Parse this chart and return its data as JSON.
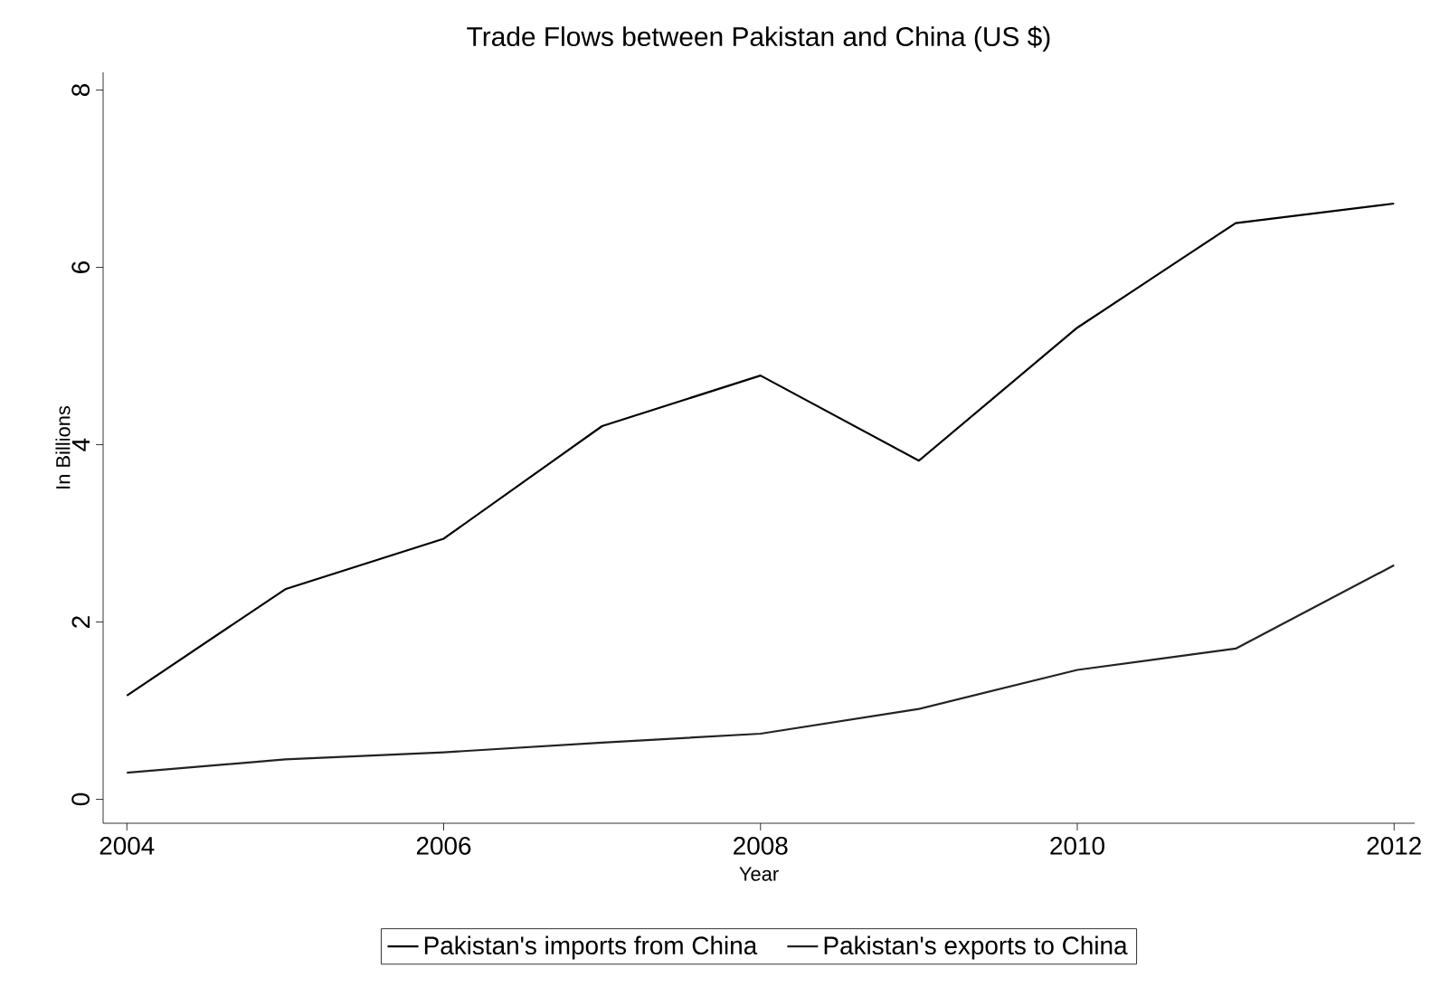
{
  "chart_data": {
    "type": "line",
    "title": "Trade Flows between Pakistan and China (US $)",
    "xlabel": "Year",
    "ylabel": "In Billions",
    "x": [
      2004,
      2005,
      2006,
      2007,
      2008,
      2009,
      2010,
      2011,
      2012
    ],
    "series": [
      {
        "name": "Pakistan's imports from China",
        "color": "#000000",
        "values": [
          1.17,
          2.37,
          2.94,
          4.21,
          4.78,
          3.82,
          5.32,
          6.5,
          6.72
        ]
      },
      {
        "name": "Pakistan's exports to China",
        "color": "#222222",
        "values": [
          0.3,
          0.45,
          0.53,
          0.64,
          0.74,
          1.02,
          1.46,
          1.7,
          2.64
        ]
      }
    ],
    "xlim": [
      2003.85,
      2012.13
    ],
    "ylim": [
      -0.27,
      8.2
    ],
    "xticks": [
      2004,
      2006,
      2008,
      2010,
      2012
    ],
    "yticks": [
      0,
      2,
      4,
      6,
      8
    ],
    "grid": false,
    "legend": "bottom",
    "marker": "none",
    "line_style": "solid"
  }
}
